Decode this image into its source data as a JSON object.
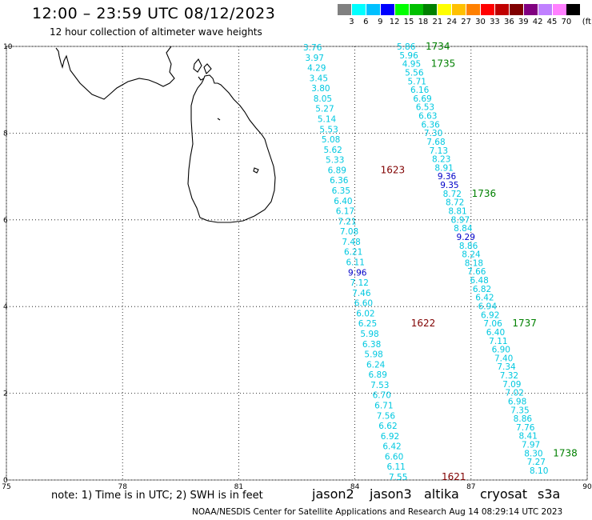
{
  "title": "12:00 – 23:59 UTC 08/12/2023",
  "subtitle": "12 hour collection of altimeter wave heights",
  "legend": {
    "unit": "(ft)",
    "colors": [
      "#808080",
      "#00ffff",
      "#00c0ff",
      "#0000ff",
      "#00ff00",
      "#00c000",
      "#008000",
      "#ffff00",
      "#ffc000",
      "#ff8000",
      "#ff0000",
      "#c00000",
      "#800000",
      "#800080",
      "#c080ff",
      "#ff80ff",
      "#000000"
    ],
    "labels": [
      "3",
      "6",
      "9",
      "12",
      "15",
      "18",
      "21",
      "24",
      "27",
      "30",
      "33",
      "36",
      "39",
      "42",
      "45",
      "70"
    ]
  },
  "axes": {
    "x_ticks": [
      "75",
      "78",
      "81",
      "84",
      "87",
      "90"
    ],
    "y_ticks": [
      "0",
      "2",
      "4",
      "6",
      "8",
      "10"
    ],
    "xlim": [
      75,
      90
    ],
    "ylim": [
      0,
      10
    ]
  },
  "track_west": {
    "values": [
      "3.76",
      "3.97",
      "4.29",
      "3.45",
      "3.80",
      "8.05",
      "5.27",
      "5.14",
      "5.53",
      "5.08",
      "5.62",
      "5.33",
      "6.89",
      "6.36",
      "6.35",
      "6.40",
      "6.17",
      "7.21",
      "7.08",
      "7.48",
      "6.21",
      "6.11",
      "9.96",
      "7.12",
      "7.46",
      "6.60",
      "6.02",
      "6.25",
      "5.98",
      "6.38",
      "5.98",
      "6.24",
      "6.89",
      "7.53",
      "6.70",
      "6.71",
      "7.56",
      "6.62",
      "6.92",
      "6.42",
      "6.60",
      "6.11",
      "7.55"
    ],
    "colors": [
      "cyan",
      "cyan",
      "cyan",
      "cyan",
      "cyan",
      "cyan",
      "cyan",
      "cyan",
      "cyan",
      "cyan",
      "cyan",
      "cyan",
      "cyan",
      "cyan",
      "cyan",
      "cyan",
      "cyan",
      "cyan",
      "cyan",
      "cyan",
      "cyan",
      "cyan",
      "blue",
      "cyan",
      "cyan",
      "cyan",
      "cyan",
      "cyan",
      "cyan",
      "cyan",
      "cyan",
      "cyan",
      "cyan",
      "cyan",
      "cyan",
      "cyan",
      "cyan",
      "cyan",
      "cyan",
      "cyan",
      "cyan",
      "cyan",
      "cyan"
    ],
    "times": [
      {
        "label": "1623",
        "value_index": 12
      },
      {
        "label": "1622",
        "value_index": 27
      },
      {
        "label": "1621",
        "value_index": 42
      }
    ],
    "time_color": "#800000"
  },
  "track_east": {
    "values": [
      "5.86",
      "5.96",
      "4.95",
      "5.56",
      "5.71",
      "6.16",
      "6.69",
      "6.53",
      "6.63",
      "6.36",
      "7.30",
      "7.68",
      "7.13",
      "8.23",
      "8.91",
      "9.36",
      "9.35",
      "8.72",
      "8.72",
      "8.81",
      "8.97",
      "8.84",
      "9.29",
      "8.86",
      "8.24",
      "8.18",
      "7.66",
      "6.48",
      "6.82",
      "6.42",
      "6.94",
      "6.92",
      "7.06",
      "6.40",
      "7.11",
      "6.90",
      "7.40",
      "7.34",
      "7.32",
      "7.09",
      "7.02",
      "6.98",
      "7.35",
      "8.86",
      "7.76",
      "8.41",
      "7.97",
      "8.30",
      "7.27",
      "8.10"
    ],
    "colors": [
      "cyan",
      "cyan",
      "cyan",
      "cyan",
      "cyan",
      "cyan",
      "cyan",
      "cyan",
      "cyan",
      "cyan",
      "cyan",
      "cyan",
      "cyan",
      "cyan",
      "cyan",
      "blue",
      "blue",
      "cyan",
      "cyan",
      "cyan",
      "cyan",
      "cyan",
      "blue",
      "cyan",
      "cyan",
      "cyan",
      "cyan",
      "cyan",
      "cyan",
      "cyan",
      "cyan",
      "cyan",
      "cyan",
      "cyan",
      "cyan",
      "cyan",
      "cyan",
      "cyan",
      "cyan",
      "cyan",
      "cyan",
      "cyan",
      "cyan",
      "cyan",
      "cyan",
      "cyan",
      "cyan",
      "cyan",
      "cyan",
      "cyan"
    ],
    "times": [
      {
        "label": "1734",
        "value_index": 0
      },
      {
        "label": "1735",
        "value_index": 2
      },
      {
        "label": "1736",
        "value_index": 17
      },
      {
        "label": "1737",
        "value_index": 32
      },
      {
        "label": "1738",
        "value_index": 47
      }
    ],
    "time_color": "#008000"
  },
  "note": "note: 1) Time is in UTC; 2) SWH is in feet",
  "satellites": [
    {
      "name": "jason2",
      "color": "#0000ff"
    },
    {
      "name": "jason3",
      "color": "#008000"
    },
    {
      "name": "altika",
      "color": "#ff8000"
    },
    {
      "name": "cryosat",
      "color": "#ff0000"
    },
    {
      "name": "s3a",
      "color": "#800000"
    }
  ],
  "footer": "NOAA/NESDIS Center for Satellite Applications and Research   Aug 14 08:29:14 UTC 2023"
}
